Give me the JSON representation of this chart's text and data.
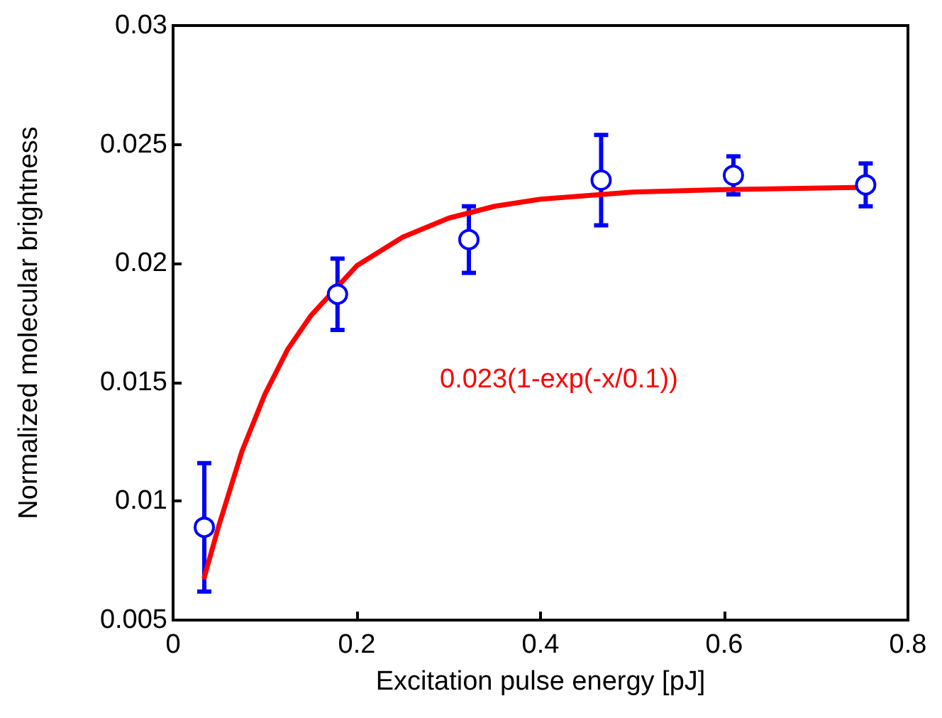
{
  "chart_data": {
    "type": "scatter",
    "xlabel": "Excitation pulse energy [pJ]",
    "ylabel": "Normalized molecular brightness",
    "annotations": [
      "0.023(1-exp(-x/0.1))"
    ],
    "xlim": [
      0,
      0.8
    ],
    "xticks": [
      0,
      0.2,
      0.4,
      0.6,
      0.8
    ],
    "ylim": [
      0.005,
      0.03
    ],
    "yticks": [
      0.005,
      0.01,
      0.015,
      0.02,
      0.025,
      0.03
    ],
    "grid": false,
    "series": [
      {
        "color": "#0000ff",
        "marker": "circle",
        "x": [
          0.034,
          0.179,
          0.322,
          0.466,
          0.61,
          0.754
        ],
        "values": [
          0.0089,
          0.0187,
          0.021,
          0.0235,
          0.0237,
          0.0233
        ],
        "errors": [
          0.0027,
          0.0015,
          0.0014,
          0.0019,
          0.0008,
          0.0009
        ]
      },
      {
        "type": "line",
        "color": "#ff0000",
        "marker": "none",
        "line_style": "solid",
        "x": [
          0.034,
          0.05,
          0.075,
          0.1,
          0.125,
          0.15,
          0.2,
          0.25,
          0.3,
          0.35,
          0.4,
          0.5,
          0.6,
          0.754
        ],
        "values": [
          0.0068,
          0.009,
          0.0121,
          0.0145,
          0.0164,
          0.0178,
          0.0199,
          0.0211,
          0.0219,
          0.0224,
          0.0227,
          0.023,
          0.0231,
          0.0232
        ]
      }
    ]
  }
}
